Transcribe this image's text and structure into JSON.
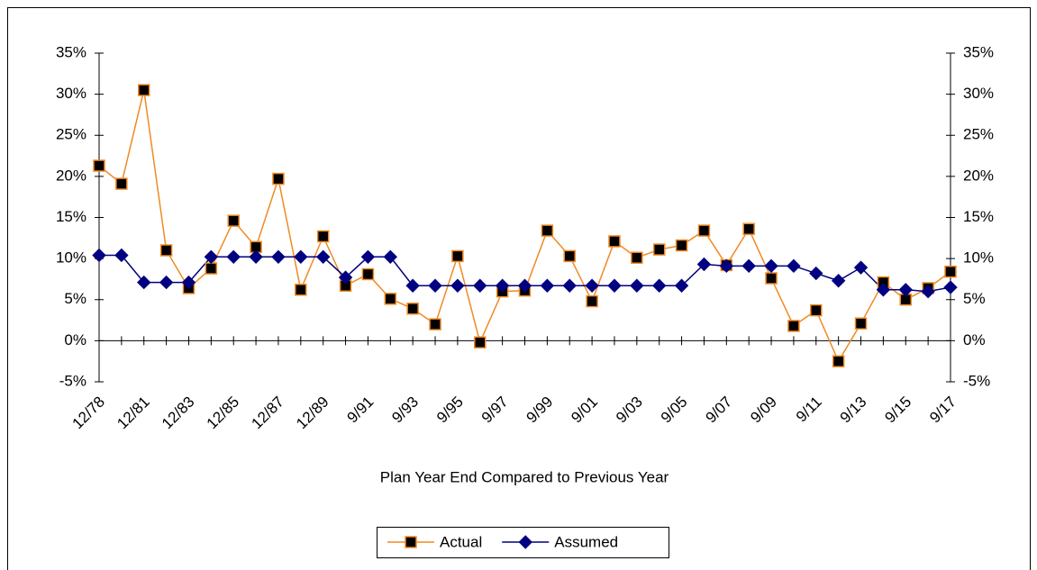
{
  "chart_data": {
    "type": "line",
    "xlabel": "Plan Year End Compared to Previous Year",
    "categories": [
      "12/78",
      null,
      "12/81",
      null,
      "12/83",
      null,
      "12/85",
      null,
      "12/87",
      null,
      "12/89",
      null,
      "9/91",
      null,
      "9/93",
      null,
      "9/95",
      null,
      "9/97",
      null,
      "9/99",
      null,
      "9/01",
      null,
      "9/03",
      null,
      "9/05",
      null,
      "9/07",
      null,
      "9/09",
      null,
      "9/11",
      null,
      "9/13",
      null,
      "9/15",
      null,
      "9/17"
    ],
    "series": [
      {
        "name": "Actual",
        "color": "#f08a24",
        "marker": "square",
        "marker_color": "#000000",
        "values": [
          21.3,
          19.1,
          30.5,
          11.0,
          6.4,
          8.8,
          14.6,
          11.4,
          19.7,
          6.2,
          12.7,
          6.7,
          8.1,
          5.1,
          3.9,
          2.0,
          10.3,
          -0.2,
          6.0,
          6.1,
          13.4,
          10.3,
          4.8,
          12.1,
          10.1,
          11.1,
          11.6,
          13.4,
          9.2,
          13.6,
          7.6,
          1.8,
          3.7,
          -2.5,
          2.1,
          7.1,
          5.0,
          6.4,
          8.4
        ]
      },
      {
        "name": "Assumed",
        "color": "#000080",
        "marker": "diamond",
        "marker_color": "#000080",
        "values": [
          10.4,
          10.4,
          7.1,
          7.1,
          7.1,
          10.2,
          10.2,
          10.2,
          10.2,
          10.2,
          10.2,
          7.7,
          10.2,
          10.2,
          6.7,
          6.7,
          6.7,
          6.7,
          6.7,
          6.7,
          6.7,
          6.7,
          6.7,
          6.7,
          6.7,
          6.7,
          6.7,
          9.3,
          9.1,
          9.1,
          9.1,
          9.1,
          8.2,
          7.3,
          8.9,
          6.2,
          6.2,
          6.0,
          6.5
        ]
      }
    ],
    "ylim": [
      -5,
      35
    ],
    "yticks": [
      {
        "value": -5,
        "label": "-5%"
      },
      {
        "value": 0,
        "label": "0%"
      },
      {
        "value": 5,
        "label": "5%"
      },
      {
        "value": 10,
        "label": "10%"
      },
      {
        "value": 15,
        "label": "15%"
      },
      {
        "value": 20,
        "label": "20%"
      },
      {
        "value": 25,
        "label": "25%"
      },
      {
        "value": 30,
        "label": "30%"
      },
      {
        "value": 35,
        "label": "35%"
      }
    ],
    "y2lim": [
      -5,
      35
    ],
    "y2ticks": [
      {
        "value": -5,
        "label": "-5%"
      },
      {
        "value": 0,
        "label": "0%"
      },
      {
        "value": 5,
        "label": "5%"
      },
      {
        "value": 10,
        "label": "10%"
      },
      {
        "value": 15,
        "label": "15%"
      },
      {
        "value": 20,
        "label": "20%"
      },
      {
        "value": 25,
        "label": "25%"
      },
      {
        "value": 30,
        "label": "30%"
      },
      {
        "value": 35,
        "label": "35%"
      }
    ],
    "legend": "bottom"
  }
}
